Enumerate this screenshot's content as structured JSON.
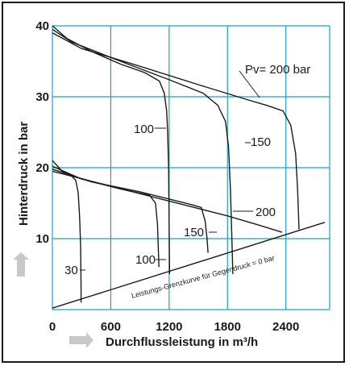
{
  "colors": {
    "grid": "#1aa3c0",
    "curve": "#1a1a1a",
    "arrow": "#c8c8c8"
  },
  "chart_data": {
    "type": "line",
    "xlabel": "Durchflussleistung in m³/h",
    "ylabel": "Hinterdruck in bar",
    "xlim": [
      0,
      2850
    ],
    "ylim": [
      0,
      40
    ],
    "x_ticks": [
      "0",
      "600",
      "1200",
      "1800",
      "2400"
    ],
    "y_ticks": [
      "10",
      "20",
      "30",
      "40"
    ],
    "grid": true,
    "series": [
      {
        "name": "100",
        "group": "upper",
        "points": [
          [
            0,
            40
          ],
          [
            150,
            38.2
          ],
          [
            400,
            36.4
          ],
          [
            700,
            34.6
          ],
          [
            950,
            33.4
          ],
          [
            1100,
            32.2
          ],
          [
            1150,
            30.5
          ],
          [
            1175,
            28
          ],
          [
            1185,
            25
          ],
          [
            1195,
            20
          ],
          [
            1205,
            5
          ]
        ]
      },
      {
        "name": "150",
        "group": "upper",
        "points": [
          [
            0,
            39.5
          ],
          [
            200,
            37.7
          ],
          [
            700,
            35
          ],
          [
            1200,
            32.4
          ],
          [
            1550,
            30.5
          ],
          [
            1700,
            28.8
          ],
          [
            1780,
            26.5
          ],
          [
            1810,
            23
          ],
          [
            1830,
            17
          ],
          [
            1845,
            10
          ],
          [
            1855,
            5
          ]
        ]
      },
      {
        "name": "200",
        "group": "upper",
        "points": [
          [
            0,
            39
          ],
          [
            300,
            36.8
          ],
          [
            900,
            34.3
          ],
          [
            1500,
            31.7
          ],
          [
            2000,
            29.6
          ],
          [
            2200,
            28.8
          ],
          [
            2370,
            28.0
          ],
          [
            2450,
            26
          ],
          [
            2500,
            22
          ],
          [
            2520,
            17
          ],
          [
            2535,
            11.3
          ]
        ]
      },
      {
        "name": "30",
        "group": "lower",
        "points": [
          [
            0,
            21
          ],
          [
            100,
            19.5
          ],
          [
            200,
            18.8
          ],
          [
            240,
            18.2
          ],
          [
            265,
            16.5
          ],
          [
            280,
            13
          ],
          [
            290,
            9
          ],
          [
            295,
            3
          ],
          [
            295,
            1
          ]
        ]
      },
      {
        "name": "100",
        "group": "lower",
        "points": [
          [
            0,
            20.2
          ],
          [
            300,
            18.4
          ],
          [
            700,
            17.0
          ],
          [
            1000,
            16.1
          ],
          [
            1060,
            15.0
          ],
          [
            1080,
            12
          ],
          [
            1090,
            8
          ],
          [
            1095,
            6
          ]
        ]
      },
      {
        "name": "150",
        "group": "lower",
        "points": [
          [
            0,
            19.8
          ],
          [
            400,
            18.0
          ],
          [
            900,
            16.6
          ],
          [
            1400,
            14.9
          ],
          [
            1530,
            14.4
          ],
          [
            1570,
            12.5
          ],
          [
            1590,
            10
          ],
          [
            1600,
            8
          ]
        ]
      },
      {
        "name": "200",
        "group": "lower",
        "points": [
          [
            0,
            19.5
          ],
          [
            600,
            17.4
          ],
          [
            1200,
            15.3
          ],
          [
            1800,
            13.2
          ],
          [
            2100,
            12.0
          ],
          [
            2360,
            10.9
          ]
        ]
      }
    ],
    "limit_curve": {
      "label": "Leistungs-Grenzkurve für Gegendruck = 0 bar",
      "points": [
        [
          0,
          0.2
        ],
        [
          2800,
          12.3
        ]
      ]
    },
    "annotations": {
      "pv_label": "Pv= 200 bar",
      "upper_100": "100",
      "upper_150": "150",
      "lower_200": "200",
      "lower_150": "150",
      "lower_100": "100",
      "lower_30": "30"
    }
  }
}
